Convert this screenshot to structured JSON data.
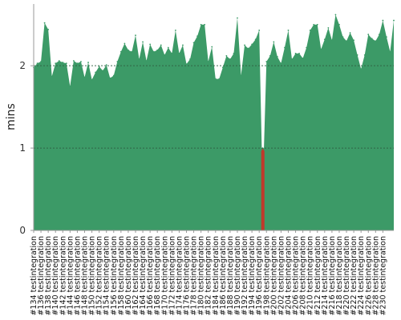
{
  "chart_data": {
    "type": "area",
    "ylabel": "mins",
    "xlabel": "",
    "ylim": [
      0,
      2.75
    ],
    "yticks": [
      0,
      1,
      2
    ],
    "grid": "horizontal dashed at y ticks",
    "build_label_format": "#{n} testintegration",
    "labeled_builds": [
      134,
      136,
      138,
      140,
      142,
      144,
      146,
      148,
      150,
      152,
      154,
      156,
      158,
      160,
      162,
      164,
      166,
      168,
      170,
      172,
      174,
      176,
      178,
      180,
      182,
      184,
      186,
      188,
      190,
      192,
      194,
      196,
      198,
      200,
      202,
      204,
      206,
      208,
      210,
      212,
      214,
      216,
      218,
      220,
      222,
      224,
      226,
      228,
      230
    ],
    "x_start": 134,
    "x_end": 233,
    "series": [
      {
        "color": "#3c9a67",
        "values": [
          1.98,
          2.03,
          2.05,
          2.52,
          2.44,
          1.87,
          2.03,
          2.06,
          2.04,
          2.03,
          1.75,
          2.06,
          2.03,
          2.05,
          1.86,
          2.04,
          1.83,
          1.92,
          1.99,
          1.94,
          2.01,
          1.85,
          1.88,
          2.05,
          2.17,
          2.27,
          2.19,
          2.17,
          2.37,
          2.08,
          2.29,
          2.06,
          2.26,
          2.17,
          2.19,
          2.25,
          2.13,
          2.22,
          2.15,
          2.43,
          2.15,
          2.25,
          2.02,
          2.08,
          2.28,
          2.36,
          2.5,
          2.5,
          2.05,
          2.23,
          1.84,
          1.84,
          1.98,
          2.12,
          2.08,
          2.15,
          2.58,
          1.88,
          2.25,
          2.21,
          2.26,
          2.32,
          2.43,
          1.0,
          2.05,
          2.12,
          2.29,
          2.11,
          2.03,
          2.22,
          2.43,
          2.08,
          2.15,
          2.15,
          2.09,
          2.22,
          2.43,
          2.5,
          2.5,
          2.2,
          2.32,
          2.46,
          2.31,
          2.62,
          2.5,
          2.35,
          2.3,
          2.4,
          2.31,
          2.13,
          1.96,
          2.13,
          2.38,
          2.33,
          2.3,
          2.38,
          2.55,
          2.35,
          2.17,
          2.55
        ]
      }
    ],
    "failed_build": 197,
    "failed_color": "#c0392b"
  }
}
